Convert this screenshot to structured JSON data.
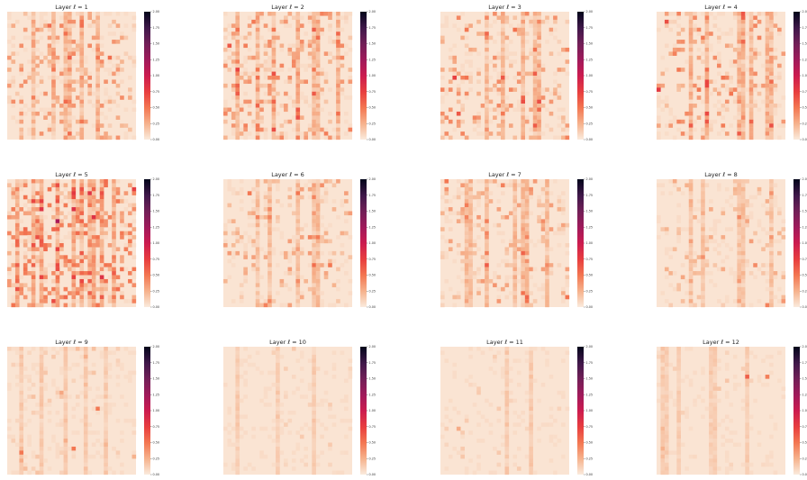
{
  "chart_data": {
    "type": "heatmap",
    "colormap": "rocket",
    "colorbar": {
      "range": [
        0.0,
        2.0
      ],
      "ticks": [
        "0.00",
        "0.25",
        "0.50",
        "0.75",
        "1.00",
        "1.25",
        "1.50",
        "1.75",
        "2.00"
      ]
    },
    "grid": "32x32 cells per panel, no axes",
    "panels": [
      {
        "title": "Layer ℓ = 1",
        "hot_columns": [
          6,
          11,
          14,
          15,
          18,
          22
        ],
        "density": 0.18,
        "intensity": 0.18
      },
      {
        "title": "Layer ℓ = 2",
        "hot_columns": [
          3,
          8,
          12,
          18,
          22,
          23,
          28
        ],
        "density": 0.2,
        "intensity": 0.2
      },
      {
        "title": "Layer ℓ = 3",
        "hot_columns": [
          11,
          15,
          20,
          23,
          24
        ],
        "density": 0.14,
        "intensity": 0.2
      },
      {
        "title": "Layer ℓ = 4",
        "hot_columns": [
          8,
          12,
          20,
          21,
          23,
          27,
          28
        ],
        "density": 0.14,
        "intensity": 0.22
      },
      {
        "title": "Layer ℓ = 5",
        "hot_columns": [
          2,
          6,
          8,
          12,
          16,
          18,
          20,
          21,
          23,
          26
        ],
        "density": 0.3,
        "intensity": 0.26
      },
      {
        "title": "Layer ℓ = 6",
        "hot_columns": [
          8,
          11,
          18,
          22,
          23
        ],
        "density": 0.12,
        "intensity": 0.15
      },
      {
        "title": "Layer ℓ = 7",
        "hot_columns": [
          6,
          7,
          11,
          18,
          20,
          21,
          26
        ],
        "density": 0.14,
        "intensity": 0.17
      },
      {
        "title": "Layer ℓ = 8",
        "hot_columns": [
          8,
          11,
          20,
          21,
          28
        ],
        "density": 0.08,
        "intensity": 0.12
      },
      {
        "title": "Layer ℓ = 9",
        "hot_columns": [
          3,
          8,
          14,
          19,
          24
        ],
        "density": 0.04,
        "intensity": 0.07
      },
      {
        "title": "Layer ℓ = 10",
        "hot_columns": [
          3,
          13,
          22
        ],
        "density": 0.03,
        "intensity": 0.06
      },
      {
        "title": "Layer ℓ = 11",
        "hot_columns": [
          16,
          22
        ],
        "density": 0.02,
        "intensity": 0.07
      },
      {
        "title": "Layer ℓ = 12",
        "hot_columns": [
          1,
          2,
          5,
          13,
          14,
          22
        ],
        "density": 0.02,
        "intensity": 0.06
      }
    ]
  }
}
